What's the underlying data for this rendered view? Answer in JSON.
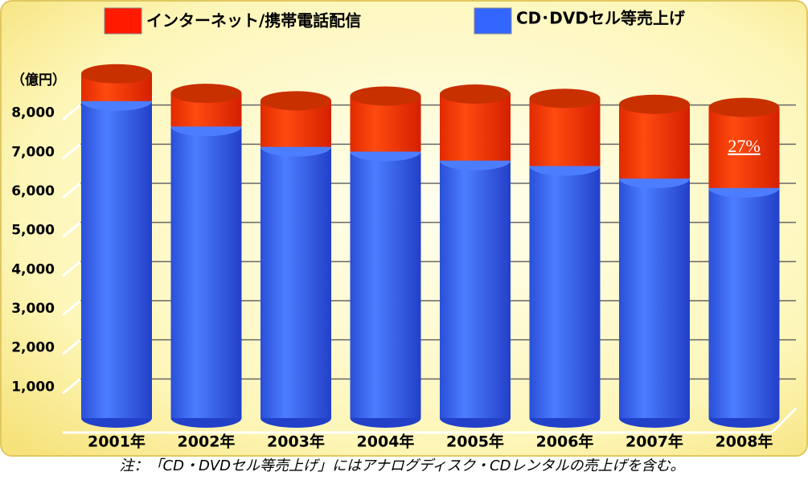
{
  "chart_data": {
    "type": "bar",
    "stacked": true,
    "y_label": "（億円）",
    "footnote": "注：「CD・DVDセル等売上げ」にはアナログディスク・CDレンタルの売上げを含む。",
    "annotation": "27%",
    "categories": [
      "2001年",
      "2002年",
      "2003年",
      "2004年",
      "2005年",
      "2006年",
      "2007年",
      "2008年"
    ],
    "series": [
      {
        "name": "CD･DVDセル等売上げ",
        "color": "#3366ff",
        "values": [
          8100,
          7450,
          6930,
          6810,
          6580,
          6440,
          6120,
          5880
        ]
      },
      {
        "name": "インターネット/携帯電話配信",
        "color": "#ff2a00",
        "values": [
          700,
          850,
          1180,
          1420,
          1700,
          1730,
          1900,
          2060
        ]
      }
    ],
    "ylim": [
      0,
      9000
    ],
    "yticks": [
      {
        "value": 1000,
        "label": "1,000"
      },
      {
        "value": 2000,
        "label": "2,000"
      },
      {
        "value": 3000,
        "label": "3,000"
      },
      {
        "value": 4000,
        "label": "4,000"
      },
      {
        "value": 5000,
        "label": "5,000"
      },
      {
        "value": 6000,
        "label": "6,000"
      },
      {
        "value": 7000,
        "label": "7,000"
      },
      {
        "value": 8000,
        "label": "8,000"
      }
    ],
    "grid": true
  }
}
